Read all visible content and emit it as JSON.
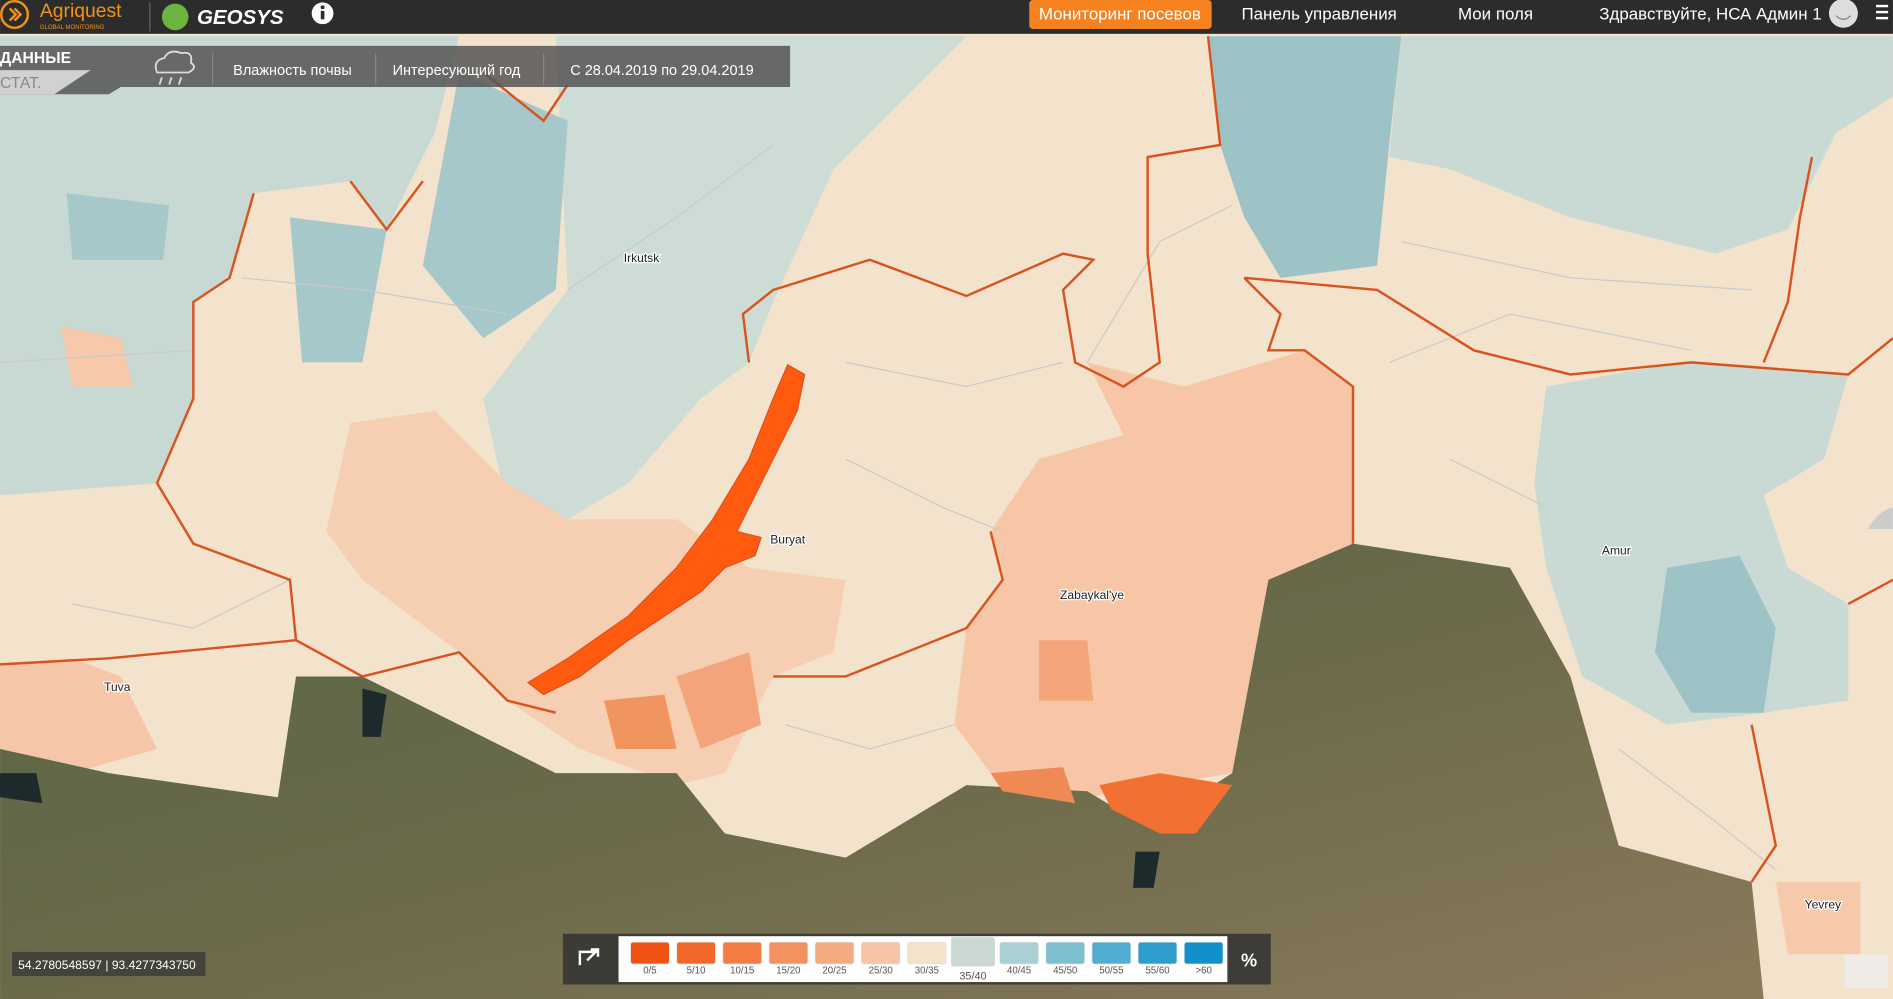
{
  "header": {
    "brand": "Agriquest",
    "brand_tagline": "GLOBAL MONITORING",
    "partner": "GEOSYS",
    "nav": [
      "Мониторинг посевов",
      "Панель управления",
      "Мои поля"
    ],
    "greeting": "Здравствуйте, НСА Админ 1"
  },
  "panel": {
    "tabs": [
      "ДАННЫЕ",
      "СТАТ."
    ],
    "layer": "Влажность почвы",
    "period_type": "Интересующий год",
    "date_range": "С 28.04.2019 по 29.04.2019"
  },
  "map": {
    "labels": [
      "Irkutsk",
      "Buryat",
      "Zabaykal'ye",
      "Tuva",
      "Amur",
      "Yevrey"
    ]
  },
  "legend": {
    "items": [
      {
        "label": "0/5",
        "color": "#f05313"
      },
      {
        "label": "5/10",
        "color": "#f2672b"
      },
      {
        "label": "10/15",
        "color": "#f37c45"
      },
      {
        "label": "15/20",
        "color": "#f4925f"
      },
      {
        "label": "20/25",
        "color": "#f5ab82"
      },
      {
        "label": "25/30",
        "color": "#f5c5a6"
      },
      {
        "label": "30/35",
        "color": "#f3e3cd"
      },
      {
        "label": "35/40",
        "color": "#c9d9d2"
      },
      {
        "label": "40/45",
        "color": "#a9d0d4"
      },
      {
        "label": "45/50",
        "color": "#7dbfcf"
      },
      {
        "label": "50/55",
        "color": "#52aed0"
      },
      {
        "label": "55/60",
        "color": "#2f9dcc"
      },
      {
        "label": ">60",
        "color": "#1290c9"
      }
    ],
    "unit": "%"
  },
  "coordinates": "54.2780548597 | 93.4277343750"
}
